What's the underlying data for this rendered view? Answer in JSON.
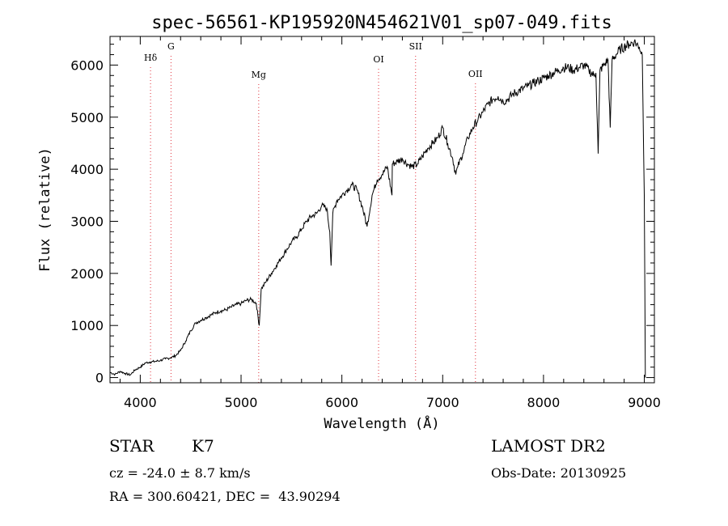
{
  "chart_data": {
    "type": "line",
    "title": "spec-56561-KP195920N454621V01_sp07-049.fits",
    "xlabel": "Wavelength (Å)",
    "ylabel": "Flux (relative)",
    "xlim": [
      3700,
      9100
    ],
    "ylim": [
      -100,
      6550
    ],
    "x_ticks": [
      4000,
      5000,
      6000,
      7000,
      8000,
      9000
    ],
    "y_ticks": [
      0,
      1000,
      2000,
      3000,
      4000,
      5000,
      6000
    ],
    "grid": false,
    "line_color": "#000000",
    "marker_color": "#e0303a",
    "spectral_lines": [
      {
        "label": "Hδ",
        "wavelength": 4102
      },
      {
        "label": "G",
        "wavelength": 4305
      },
      {
        "label": "Mg",
        "wavelength": 5175
      },
      {
        "label": "OI",
        "wavelength": 6364
      },
      {
        "label": "SII",
        "wavelength": 6731
      },
      {
        "label": "OII",
        "wavelength": 7325
      }
    ],
    "series": [
      {
        "x": [
          3700,
          3750,
          3800,
          3850,
          3900,
          3950,
          4000,
          4050,
          4100,
          4150,
          4200,
          4250,
          4300,
          4350,
          4400,
          4450,
          4500,
          4550,
          4600,
          4650,
          4700,
          4750,
          4800,
          4850,
          4900,
          4950,
          5000,
          5050,
          5100,
          5150,
          5180,
          5200,
          5250,
          5300,
          5350,
          5400,
          5450,
          5500,
          5550,
          5600,
          5650,
          5700,
          5750,
          5800,
          5850,
          5880,
          5893,
          5910,
          5950,
          6000,
          6050,
          6100,
          6150,
          6200,
          6250,
          6300,
          6350,
          6400,
          6450,
          6497,
          6500,
          6550,
          6600,
          6650,
          6700,
          6750,
          6800,
          6850,
          6900,
          6950,
          7000,
          7050,
          7100,
          7130,
          7150,
          7200,
          7250,
          7300,
          7350,
          7400,
          7450,
          7500,
          7550,
          7600,
          7650,
          7700,
          7750,
          7800,
          7850,
          7900,
          7950,
          8000,
          8050,
          8100,
          8150,
          8200,
          8250,
          8300,
          8350,
          8400,
          8450,
          8498,
          8520,
          8542,
          8560,
          8600,
          8640,
          8662,
          8680,
          8720,
          8760,
          8800,
          8850,
          8900,
          8950,
          8980,
          9000,
          9010
        ],
        "y": [
          100,
          60,
          120,
          80,
          50,
          150,
          200,
          280,
          300,
          310,
          330,
          360,
          380,
          420,
          520,
          700,
          900,
          1050,
          1100,
          1150,
          1200,
          1250,
          1280,
          1300,
          1350,
          1400,
          1420,
          1480,
          1500,
          1430,
          1000,
          1700,
          1850,
          2000,
          2150,
          2300,
          2450,
          2600,
          2700,
          2850,
          3000,
          3100,
          3150,
          3300,
          3250,
          2800,
          2150,
          3150,
          3400,
          3500,
          3600,
          3700,
          3600,
          3300,
          2900,
          3500,
          3800,
          3900,
          4050,
          3500,
          4100,
          4150,
          4200,
          4100,
          4050,
          4100,
          4250,
          4400,
          4500,
          4600,
          4800,
          4500,
          4200,
          3900,
          4050,
          4300,
          4600,
          4800,
          4950,
          5100,
          5250,
          5350,
          5400,
          5300,
          5350,
          5450,
          5500,
          5550,
          5600,
          5650,
          5700,
          5750,
          5800,
          5850,
          5900,
          5950,
          5950,
          5900,
          5950,
          6000,
          5900,
          5800,
          5850,
          4300,
          5900,
          6000,
          6100,
          4800,
          6100,
          6200,
          6300,
          6350,
          6400,
          6450,
          6350,
          6200,
          3500,
          0
        ]
      }
    ]
  },
  "info": {
    "object_type": "STAR",
    "subclass": "K7",
    "survey": "LAMOST DR2",
    "redshift": "cz = -24.0 ± 8.7 km/s",
    "obs_date": "Obs-Date: 20130925",
    "coords": "RA = 300.60421, DEC =  43.90294"
  }
}
